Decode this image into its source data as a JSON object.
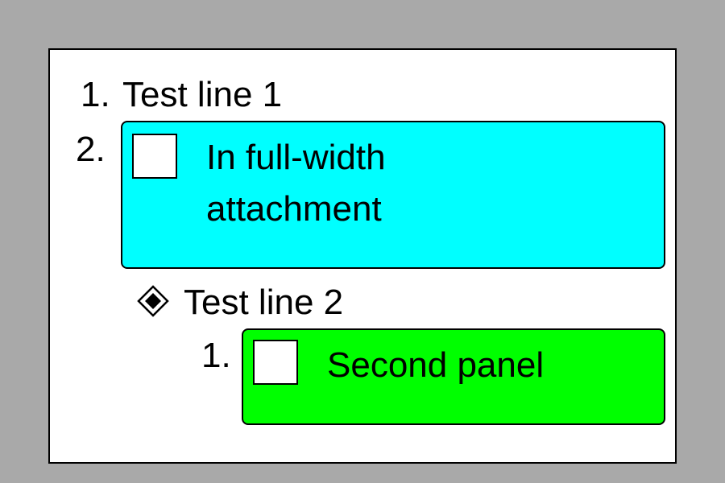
{
  "list": {
    "item1": {
      "marker": "1.",
      "text": "Test line 1"
    },
    "item2": {
      "marker": "2.",
      "panel": {
        "color": "#00ffff",
        "line1": "In full-width",
        "line2": "attachment"
      }
    },
    "item3": {
      "bullet_icon": "diamond-bullet-icon",
      "text": "Test line 2"
    },
    "sub_item1": {
      "marker": "1.",
      "panel": {
        "color": "#00ff00",
        "text": "Second panel"
      }
    }
  }
}
